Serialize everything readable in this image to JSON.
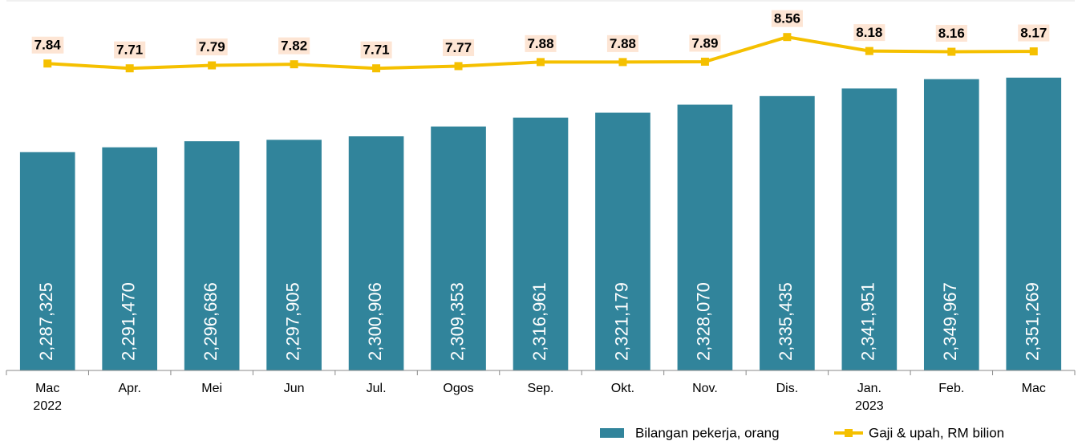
{
  "chart_data": {
    "type": "bar-line",
    "categories": [
      "Mac\n2022",
      "Apr.",
      "Mei",
      "Jun",
      "Jul.",
      "Ogos",
      "Sep.",
      "Okt.",
      "Nov.",
      "Dis.",
      "Jan.\n2023",
      "Feb.",
      "Mac"
    ],
    "series": [
      {
        "name": "Bilangan pekerja, orang",
        "type": "bar",
        "color": "#31849b",
        "values": [
          2287325,
          2291470,
          2296686,
          2297905,
          2300906,
          2309353,
          2316961,
          2321179,
          2328070,
          2335435,
          2341951,
          2349967,
          2351269
        ],
        "value_labels": [
          "2,287,325",
          "2,291,470",
          "2,296,686",
          "2,297,905",
          "2,300,906",
          "2,309,353",
          "2,316,961",
          "2,321,179",
          "2,328,070",
          "2,335,435",
          "2,341,951",
          "2,349,967",
          "2,351,269"
        ]
      },
      {
        "name": "Gaji & upah, RM bilion",
        "type": "line",
        "axis": "y2",
        "color": "#f5c000",
        "values": [
          7.84,
          7.71,
          7.79,
          7.82,
          7.71,
          7.77,
          7.88,
          7.88,
          7.89,
          8.56,
          8.18,
          8.16,
          8.17
        ]
      }
    ],
    "ylim": [
      2100000,
      2400000
    ],
    "y2lim": [
      -0.5,
      9
    ]
  }
}
